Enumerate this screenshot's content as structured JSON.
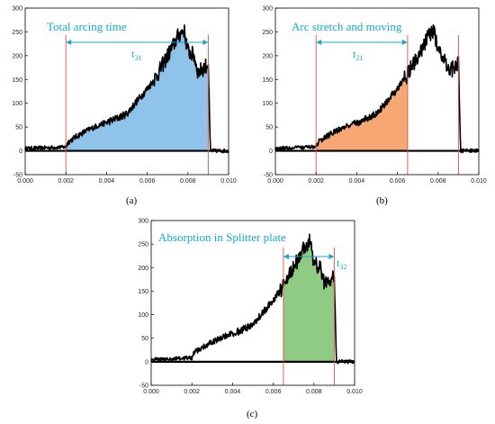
{
  "colors": {
    "annotation": "#17a9c9",
    "signal": "#000000",
    "marker_line": "#e0504a",
    "fill_a": "#8fc3ea",
    "fill_b": "#f7a774",
    "fill_c": "#8fcb83",
    "baseline": "#000000"
  },
  "chart_data": [
    {
      "id": "a",
      "type": "line",
      "caption": "(a)",
      "annotation": "Total arcing time",
      "interval_label": {
        "main": "t",
        "sub": "31"
      },
      "xlim": [
        0,
        0.01
      ],
      "ylim": [
        -50,
        300
      ],
      "xticks": [
        "0.000",
        "0.002",
        "0.004",
        "0.006",
        "0.008",
        "0.010"
      ],
      "yticks": [
        "-50",
        "0",
        "50",
        "100",
        "150",
        "200",
        "250",
        "300"
      ],
      "highlight_interval": [
        0.002,
        0.009
      ],
      "fill_color": "#8fc3ea",
      "markers": [
        0.002,
        0.009
      ]
    },
    {
      "id": "b",
      "type": "line",
      "caption": "(b)",
      "annotation": "Arc stretch and moving",
      "interval_label": {
        "main": "t",
        "sub": "21"
      },
      "xlim": [
        0,
        0.01
      ],
      "ylim": [
        -50,
        300
      ],
      "xticks": [
        "0.000",
        "0.002",
        "0.004",
        "0.006",
        "0.008",
        "0.010"
      ],
      "yticks": [
        "-50",
        "0",
        "50",
        "100",
        "150",
        "200",
        "250",
        "300"
      ],
      "highlight_interval": [
        0.002,
        0.0065
      ],
      "fill_color": "#f7a774",
      "markers": [
        0.002,
        0.0065,
        0.009
      ]
    },
    {
      "id": "c",
      "type": "line",
      "caption": "(c)",
      "annotation": "Absorption in Splitter plate",
      "interval_label": {
        "main": "t",
        "sub": "32"
      },
      "xlim": [
        0,
        0.01
      ],
      "ylim": [
        -50,
        300
      ],
      "xticks": [
        "0.000",
        "0.002",
        "0.004",
        "0.006",
        "0.008",
        "0.010"
      ],
      "yticks": [
        "-50",
        "0",
        "50",
        "100",
        "150",
        "200",
        "250",
        "300"
      ],
      "highlight_interval": [
        0.0065,
        0.009
      ],
      "fill_color": "#8fcb83",
      "markers": [
        0.0065,
        0.009
      ]
    }
  ],
  "signal_shape": {
    "x": [
      0,
      0.002,
      0.0021,
      0.0025,
      0.003,
      0.0035,
      0.004,
      0.0045,
      0.005,
      0.0055,
      0.006,
      0.0065,
      0.007,
      0.0072,
      0.0075,
      0.0078,
      0.008,
      0.0083,
      0.0085,
      0.0088,
      0.009,
      0.0091,
      0.01
    ],
    "y": [
      5,
      8,
      18,
      30,
      42,
      52,
      60,
      68,
      78,
      105,
      130,
      160,
      200,
      215,
      240,
      255,
      210,
      200,
      165,
      175,
      185,
      0,
      0
    ]
  }
}
